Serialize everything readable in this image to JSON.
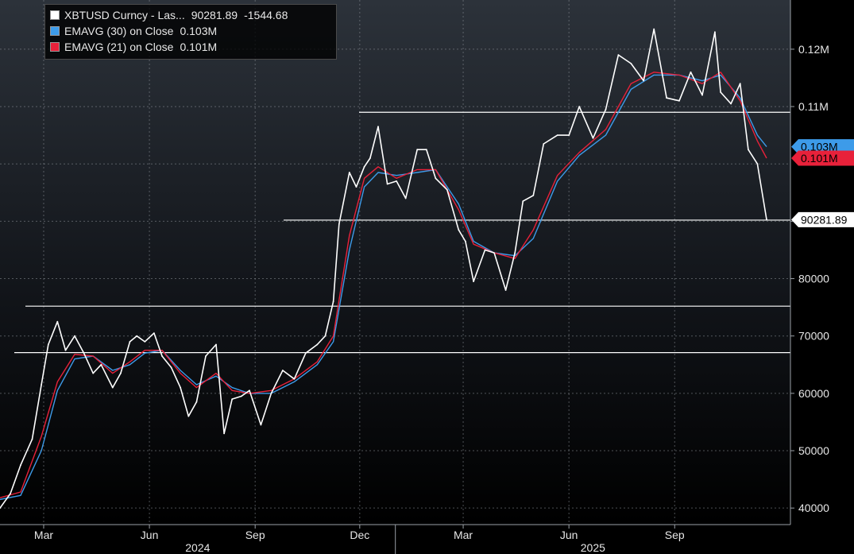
{
  "legend": {
    "items": [
      {
        "label": "XBTUSD Curncy - Las...",
        "value": "90281.89",
        "change": "-1544.68",
        "color": "#ffffff"
      },
      {
        "label": "EMAVG (30)  on Close",
        "value": "0.103M",
        "color": "#3d9be9"
      },
      {
        "label": "EMAVG (21)  on Close",
        "value": "0.101M",
        "color": "#e8213a"
      }
    ]
  },
  "chart_data": {
    "type": "line",
    "title": "",
    "xlabel": "",
    "ylabel": "",
    "x_ticks": [
      "Mar",
      "Jun",
      "Sep",
      "Dec",
      "Mar",
      "Jun",
      "Sep"
    ],
    "x_tick_years": [
      "2024",
      "2024",
      "2024",
      "2024",
      "2025",
      "2025",
      "2025"
    ],
    "year_labels": [
      "2024",
      "2025"
    ],
    "y_ticks": [
      "40000",
      "50000",
      "60000",
      "70000",
      "80000",
      "90000",
      "0.11M",
      "0.12M"
    ],
    "y_tick_values": [
      40000,
      50000,
      60000,
      70000,
      80000,
      90000,
      110000,
      120000
    ],
    "ylim": [
      38500,
      126500
    ],
    "x_range": [
      "2024-01-23",
      "2025-11-20"
    ],
    "grid": true,
    "horizontal_lines": [
      109000,
      90200,
      75200,
      67100
    ],
    "price_badges": [
      {
        "text": "0.103M",
        "value": 103000,
        "color": "#3d9be9"
      },
      {
        "text": "0.101M",
        "value": 101000,
        "color": "#e8213a"
      },
      {
        "text": "90281.89",
        "value": 90281.89,
        "color": "#ffffff"
      }
    ],
    "series": [
      {
        "name": "XBTUSD Curncy - Last Price",
        "color": "#ffffff",
        "x": [
          "2024-01-23",
          "2024-02-01",
          "2024-02-10",
          "2024-02-20",
          "2024-02-28",
          "2024-03-05",
          "2024-03-13",
          "2024-03-20",
          "2024-03-28",
          "2024-04-05",
          "2024-04-13",
          "2024-04-20",
          "2024-04-30",
          "2024-05-07",
          "2024-05-15",
          "2024-05-21",
          "2024-05-28",
          "2024-06-05",
          "2024-06-12",
          "2024-06-20",
          "2024-06-28",
          "2024-07-05",
          "2024-07-12",
          "2024-07-20",
          "2024-07-29",
          "2024-08-05",
          "2024-08-12",
          "2024-08-20",
          "2024-08-27",
          "2024-09-06",
          "2024-09-15",
          "2024-09-25",
          "2024-10-05",
          "2024-10-15",
          "2024-10-25",
          "2024-11-01",
          "2024-11-08",
          "2024-11-13",
          "2024-11-22",
          "2024-11-28",
          "2024-12-05",
          "2024-12-10",
          "2024-12-17",
          "2024-12-25",
          "2025-01-02",
          "2025-01-10",
          "2025-01-20",
          "2025-01-28",
          "2025-02-05",
          "2025-02-15",
          "2025-02-25",
          "2025-03-03",
          "2025-03-10",
          "2025-03-20",
          "2025-03-28",
          "2025-04-07",
          "2025-04-15",
          "2025-04-22",
          "2025-05-01",
          "2025-05-10",
          "2025-05-22",
          "2025-06-01",
          "2025-06-10",
          "2025-06-22",
          "2025-07-03",
          "2025-07-14",
          "2025-07-25",
          "2025-08-05",
          "2025-08-14",
          "2025-08-25",
          "2025-09-05",
          "2025-09-15",
          "2025-09-25",
          "2025-10-06",
          "2025-10-11",
          "2025-10-20",
          "2025-10-28",
          "2025-11-04",
          "2025-11-12",
          "2025-11-20"
        ],
        "values": [
          40000,
          42500,
          47500,
          52000,
          61500,
          68500,
          72500,
          67500,
          70000,
          67000,
          63500,
          65000,
          61000,
          63500,
          69000,
          70000,
          69000,
          70500,
          66500,
          64500,
          61000,
          56000,
          58500,
          66500,
          68500,
          53000,
          59000,
          59500,
          60500,
          54500,
          60000,
          64000,
          62500,
          67000,
          68500,
          70000,
          76000,
          89500,
          98500,
          96000,
          99500,
          101000,
          106500,
          96500,
          97000,
          94000,
          102500,
          102500,
          97500,
          95500,
          88500,
          86500,
          79500,
          85000,
          84500,
          78000,
          84500,
          93500,
          94500,
          103500,
          105000,
          105000,
          110000,
          104500,
          109500,
          119000,
          117500,
          114500,
          123500,
          111500,
          111000,
          116000,
          112000,
          123000,
          112500,
          110500,
          114000,
          102500,
          100000,
          90281.89
        ]
      },
      {
        "name": "EMAVG (30) on Close",
        "color": "#3d9be9",
        "x": [
          "2024-01-23",
          "2024-02-10",
          "2024-02-28",
          "2024-03-13",
          "2024-03-28",
          "2024-04-13",
          "2024-04-30",
          "2024-05-15",
          "2024-05-28",
          "2024-06-12",
          "2024-06-28",
          "2024-07-12",
          "2024-07-29",
          "2024-08-12",
          "2024-08-27",
          "2024-09-15",
          "2024-10-05",
          "2024-10-25",
          "2024-11-08",
          "2024-11-22",
          "2024-12-05",
          "2024-12-17",
          "2025-01-02",
          "2025-01-20",
          "2025-02-05",
          "2025-02-25",
          "2025-03-10",
          "2025-03-28",
          "2025-04-15",
          "2025-05-01",
          "2025-05-22",
          "2025-06-10",
          "2025-07-03",
          "2025-07-25",
          "2025-08-14",
          "2025-09-05",
          "2025-09-25",
          "2025-10-11",
          "2025-10-28",
          "2025-11-12",
          "2025-11-20"
        ],
        "values": [
          41500,
          42200,
          50000,
          60500,
          66000,
          66500,
          64000,
          65000,
          67000,
          67500,
          64000,
          61500,
          63000,
          61000,
          60000,
          60000,
          62000,
          65000,
          69000,
          85000,
          96000,
          98500,
          98000,
          98500,
          99000,
          93000,
          86500,
          84500,
          84000,
          87000,
          97000,
          101500,
          105000,
          113000,
          115500,
          115500,
          114500,
          115500,
          111500,
          105000,
          103000
        ]
      },
      {
        "name": "EMAVG (21) on Close",
        "color": "#e8213a",
        "x": [
          "2024-01-23",
          "2024-02-10",
          "2024-02-28",
          "2024-03-13",
          "2024-03-28",
          "2024-04-13",
          "2024-04-30",
          "2024-05-15",
          "2024-05-28",
          "2024-06-12",
          "2024-06-28",
          "2024-07-12",
          "2024-07-29",
          "2024-08-12",
          "2024-08-27",
          "2024-09-15",
          "2024-10-05",
          "2024-10-25",
          "2024-11-08",
          "2024-11-22",
          "2024-12-05",
          "2024-12-17",
          "2025-01-02",
          "2025-01-20",
          "2025-02-05",
          "2025-02-25",
          "2025-03-10",
          "2025-03-28",
          "2025-04-15",
          "2025-05-01",
          "2025-05-22",
          "2025-06-10",
          "2025-07-03",
          "2025-07-25",
          "2025-08-14",
          "2025-09-05",
          "2025-09-25",
          "2025-10-11",
          "2025-10-28",
          "2025-11-12",
          "2025-11-20"
        ],
        "values": [
          41800,
          42800,
          52500,
          62000,
          66800,
          66500,
          63500,
          65500,
          67500,
          67500,
          63500,
          61000,
          63500,
          60500,
          60000,
          60500,
          62500,
          65500,
          70000,
          87500,
          97500,
          99500,
          97500,
          99000,
          99000,
          92000,
          86000,
          84500,
          83500,
          88500,
          98000,
          102000,
          106000,
          114000,
          116000,
          115500,
          114000,
          116000,
          111000,
          104000,
          101000
        ]
      }
    ]
  }
}
